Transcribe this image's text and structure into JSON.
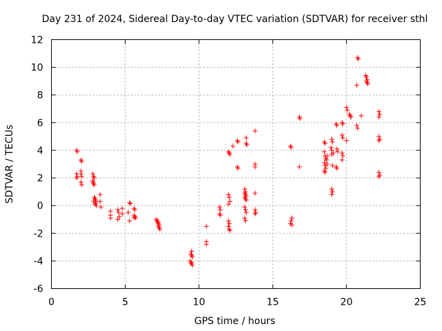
{
  "chart_data": {
    "type": "scatter",
    "title": "Day 231 of 2024, Sidereal Day-to-day VTEC variation (SDTVAR) for receiver sthl",
    "xlabel": "GPS time / hours",
    "ylabel": "SDTVAR / TECUs",
    "xlim": [
      0,
      25
    ],
    "ylim": [
      -6,
      12
    ],
    "xticks": [
      0,
      5,
      10,
      15,
      20,
      25
    ],
    "yticks": [
      -6,
      -4,
      -2,
      0,
      2,
      4,
      6,
      8,
      10,
      12
    ],
    "xtick_labels": [
      "0",
      "5",
      "10",
      "15",
      "20",
      "25"
    ],
    "ytick_labels": [
      "-6",
      "-4",
      "-2",
      "0",
      "2",
      "4",
      "6",
      "8",
      "10",
      "12"
    ],
    "grid": true,
    "marker": "+",
    "color": "#ff0000",
    "series": [
      {
        "name": "SDTVAR",
        "points": [
          [
            1.7,
            4.0
          ],
          [
            1.75,
            3.9
          ],
          [
            1.7,
            2.3
          ],
          [
            1.7,
            2.0
          ],
          [
            1.75,
            2.1
          ],
          [
            2.0,
            3.3
          ],
          [
            2.05,
            3.2
          ],
          [
            2.0,
            2.5
          ],
          [
            2.0,
            2.3
          ],
          [
            2.05,
            2.1
          ],
          [
            2.0,
            1.7
          ],
          [
            2.05,
            1.5
          ],
          [
            2.8,
            2.3
          ],
          [
            2.85,
            2.1
          ],
          [
            2.9,
            2.0
          ],
          [
            2.8,
            1.8
          ],
          [
            2.85,
            1.6
          ],
          [
            2.9,
            1.5
          ],
          [
            2.8,
            1.7
          ],
          [
            2.9,
            0.6
          ],
          [
            2.95,
            0.5
          ],
          [
            3.0,
            0.4
          ],
          [
            2.85,
            0.3
          ],
          [
            3.0,
            0.2
          ],
          [
            2.95,
            0.1
          ],
          [
            3.05,
            0.0
          ],
          [
            3.0,
            0.3
          ],
          [
            3.3,
            0.8
          ],
          [
            3.3,
            0.3
          ],
          [
            3.35,
            -0.1
          ],
          [
            4.0,
            -0.4
          ],
          [
            4.0,
            -0.7
          ],
          [
            4.0,
            -0.9
          ],
          [
            4.5,
            -0.3
          ],
          [
            4.55,
            -0.5
          ],
          [
            4.6,
            -0.8
          ],
          [
            4.5,
            -1.0
          ],
          [
            4.8,
            -0.2
          ],
          [
            4.8,
            -0.6
          ],
          [
            5.3,
            0.2
          ],
          [
            5.35,
            0.15
          ],
          [
            5.2,
            -0.5
          ],
          [
            5.3,
            -1.1
          ],
          [
            5.6,
            -0.2
          ],
          [
            5.65,
            -0.3
          ],
          [
            5.6,
            -0.7
          ],
          [
            5.65,
            -0.8
          ],
          [
            5.7,
            -0.9
          ],
          [
            5.6,
            -0.85
          ],
          [
            7.1,
            -1.0
          ],
          [
            7.15,
            -1.1
          ],
          [
            7.2,
            -1.2
          ],
          [
            7.25,
            -1.3
          ],
          [
            7.3,
            -1.4
          ],
          [
            7.25,
            -1.5
          ],
          [
            7.3,
            -1.6
          ],
          [
            7.35,
            -1.7
          ],
          [
            7.2,
            -1.1
          ],
          [
            9.5,
            -3.3
          ],
          [
            9.45,
            -3.5
          ],
          [
            9.5,
            -3.6
          ],
          [
            9.55,
            -3.7
          ],
          [
            9.4,
            -4.0
          ],
          [
            9.5,
            -4.1
          ],
          [
            9.55,
            -4.3
          ],
          [
            9.45,
            -4.2
          ],
          [
            10.5,
            -1.5
          ],
          [
            10.5,
            -2.6
          ],
          [
            10.5,
            -2.8
          ],
          [
            11.4,
            -0.1
          ],
          [
            11.45,
            -0.3
          ],
          [
            11.4,
            -0.6
          ],
          [
            11.45,
            -0.7
          ],
          [
            12.0,
            3.9
          ],
          [
            12.05,
            3.8
          ],
          [
            12.1,
            3.7
          ],
          [
            12.0,
            0.8
          ],
          [
            12.05,
            0.6
          ],
          [
            12.1,
            0.3
          ],
          [
            12.0,
            0.1
          ],
          [
            12.0,
            -1.1
          ],
          [
            12.05,
            -1.3
          ],
          [
            12.0,
            -1.5
          ],
          [
            12.05,
            -1.7
          ],
          [
            12.1,
            -1.8
          ],
          [
            12.3,
            4.3
          ],
          [
            12.6,
            4.7
          ],
          [
            12.65,
            4.6
          ],
          [
            12.6,
            2.8
          ],
          [
            12.65,
            2.7
          ],
          [
            13.2,
            4.9
          ],
          [
            13.2,
            4.5
          ],
          [
            13.25,
            4.4
          ],
          [
            13.1,
            1.2
          ],
          [
            13.15,
            1.0
          ],
          [
            13.1,
            0.9
          ],
          [
            13.15,
            0.8
          ],
          [
            13.2,
            0.7
          ],
          [
            13.1,
            0.6
          ],
          [
            13.15,
            0.5
          ],
          [
            13.2,
            0.4
          ],
          [
            13.1,
            -0.1
          ],
          [
            13.15,
            -0.3
          ],
          [
            13.2,
            -0.5
          ],
          [
            13.1,
            -0.9
          ],
          [
            13.15,
            -1.1
          ],
          [
            13.8,
            5.4
          ],
          [
            13.8,
            3.0
          ],
          [
            13.8,
            2.8
          ],
          [
            13.8,
            0.9
          ],
          [
            13.8,
            -0.3
          ],
          [
            13.85,
            -0.5
          ],
          [
            13.8,
            -0.6
          ],
          [
            16.2,
            4.3
          ],
          [
            16.25,
            4.2
          ],
          [
            16.3,
            -0.9
          ],
          [
            16.25,
            -1.1
          ],
          [
            16.2,
            -1.3
          ],
          [
            16.3,
            -1.4
          ],
          [
            16.8,
            6.4
          ],
          [
            16.85,
            6.3
          ],
          [
            16.8,
            2.8
          ],
          [
            18.5,
            4.6
          ],
          [
            18.55,
            4.5
          ],
          [
            18.5,
            3.9
          ],
          [
            18.55,
            3.6
          ],
          [
            18.6,
            3.4
          ],
          [
            18.5,
            3.1
          ],
          [
            18.55,
            2.9
          ],
          [
            18.6,
            2.7
          ],
          [
            18.5,
            2.5
          ],
          [
            18.55,
            2.4
          ],
          [
            18.7,
            3.6
          ],
          [
            18.65,
            3.3
          ],
          [
            18.7,
            3.0
          ],
          [
            19.0,
            4.8
          ],
          [
            19.05,
            4.6
          ],
          [
            18.95,
            4.2
          ],
          [
            19.0,
            4.0
          ],
          [
            19.1,
            3.8
          ],
          [
            19.0,
            3.7
          ],
          [
            19.05,
            2.9
          ],
          [
            19.0,
            1.2
          ],
          [
            19.05,
            1.0
          ],
          [
            19.0,
            0.8
          ],
          [
            19.3,
            5.9
          ],
          [
            19.35,
            5.8
          ],
          [
            19.35,
            4.1
          ],
          [
            19.4,
            3.9
          ],
          [
            19.3,
            2.8
          ],
          [
            19.35,
            2.7
          ],
          [
            19.7,
            6.0
          ],
          [
            19.75,
            5.9
          ],
          [
            19.7,
            5.1
          ],
          [
            19.75,
            4.9
          ],
          [
            19.7,
            3.8
          ],
          [
            19.75,
            3.6
          ],
          [
            19.7,
            3.3
          ],
          [
            20.0,
            7.1
          ],
          [
            20.05,
            6.9
          ],
          [
            20.0,
            4.7
          ],
          [
            20.2,
            6.6
          ],
          [
            20.25,
            6.5
          ],
          [
            20.3,
            6.4
          ],
          [
            20.7,
            5.8
          ],
          [
            20.75,
            5.6
          ],
          [
            20.7,
            8.7
          ],
          [
            20.75,
            10.7
          ],
          [
            20.8,
            10.6
          ],
          [
            21.0,
            6.5
          ],
          [
            21.3,
            9.4
          ],
          [
            21.35,
            9.3
          ],
          [
            21.4,
            9.1
          ],
          [
            21.35,
            9.0
          ],
          [
            21.4,
            8.9
          ],
          [
            21.45,
            8.8
          ],
          [
            22.2,
            6.8
          ],
          [
            22.25,
            6.6
          ],
          [
            22.2,
            6.4
          ],
          [
            22.2,
            5.0
          ],
          [
            22.25,
            4.8
          ],
          [
            22.2,
            4.7
          ],
          [
            22.2,
            2.4
          ],
          [
            22.25,
            2.2
          ],
          [
            22.2,
            2.1
          ]
        ]
      }
    ]
  }
}
